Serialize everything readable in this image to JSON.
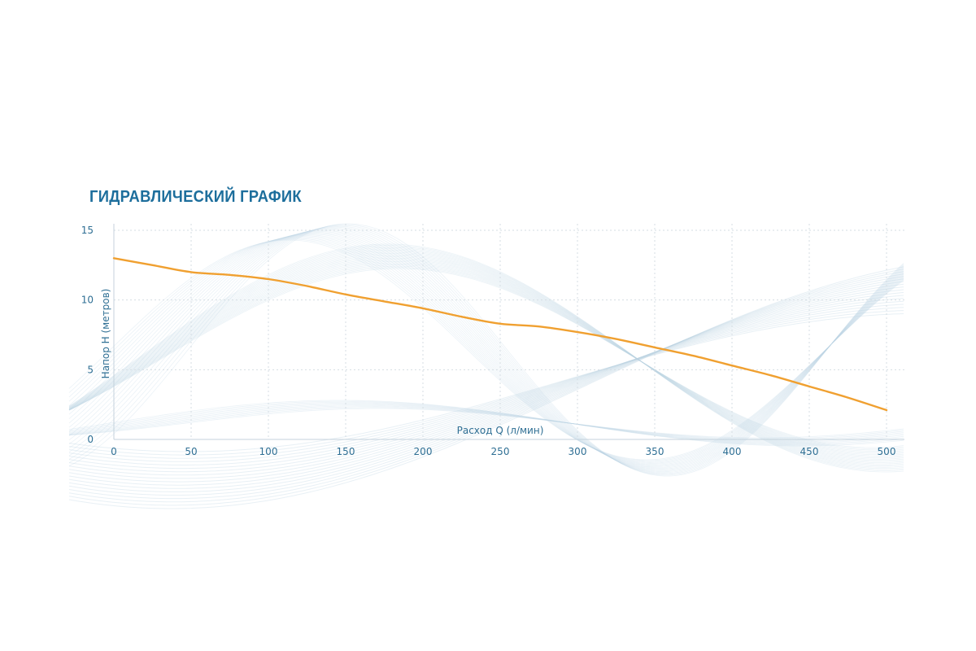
{
  "chart_data": {
    "type": "line",
    "title": "ГИДРАВЛИЧЕСКИЙ ГРАФИК",
    "xlabel": "Расход Q (л/мин)",
    "ylabel": "Напор H (метров)",
    "xlim": [
      0,
      500
    ],
    "ylim": [
      0,
      15
    ],
    "x_ticks": [
      0,
      50,
      100,
      150,
      200,
      250,
      300,
      350,
      400,
      450,
      500
    ],
    "y_ticks": [
      0,
      5,
      10,
      15
    ],
    "grid": true,
    "legend": "none",
    "series": [
      {
        "color": "#f0a030",
        "points": [
          {
            "x": 0,
            "y": 13.0
          },
          {
            "x": 25,
            "y": 12.5
          },
          {
            "x": 50,
            "y": 12.0
          },
          {
            "x": 75,
            "y": 11.8
          },
          {
            "x": 100,
            "y": 11.5
          },
          {
            "x": 125,
            "y": 11.0
          },
          {
            "x": 150,
            "y": 10.4
          },
          {
            "x": 175,
            "y": 9.9
          },
          {
            "x": 200,
            "y": 9.4
          },
          {
            "x": 225,
            "y": 8.8
          },
          {
            "x": 250,
            "y": 8.3
          },
          {
            "x": 275,
            "y": 8.1
          },
          {
            "x": 300,
            "y": 7.7
          },
          {
            "x": 325,
            "y": 7.2
          },
          {
            "x": 350,
            "y": 6.6
          },
          {
            "x": 375,
            "y": 6.0
          },
          {
            "x": 400,
            "y": 5.3
          },
          {
            "x": 425,
            "y": 4.6
          },
          {
            "x": 450,
            "y": 3.8
          },
          {
            "x": 475,
            "y": 3.0
          },
          {
            "x": 500,
            "y": 2.1
          }
        ]
      }
    ]
  },
  "colors": {
    "title": "#1d6e9c",
    "axis_text": "#2f6f94",
    "grid": "#d5dde3",
    "curve": "#f0a030",
    "wave": "#bcd4e3"
  }
}
